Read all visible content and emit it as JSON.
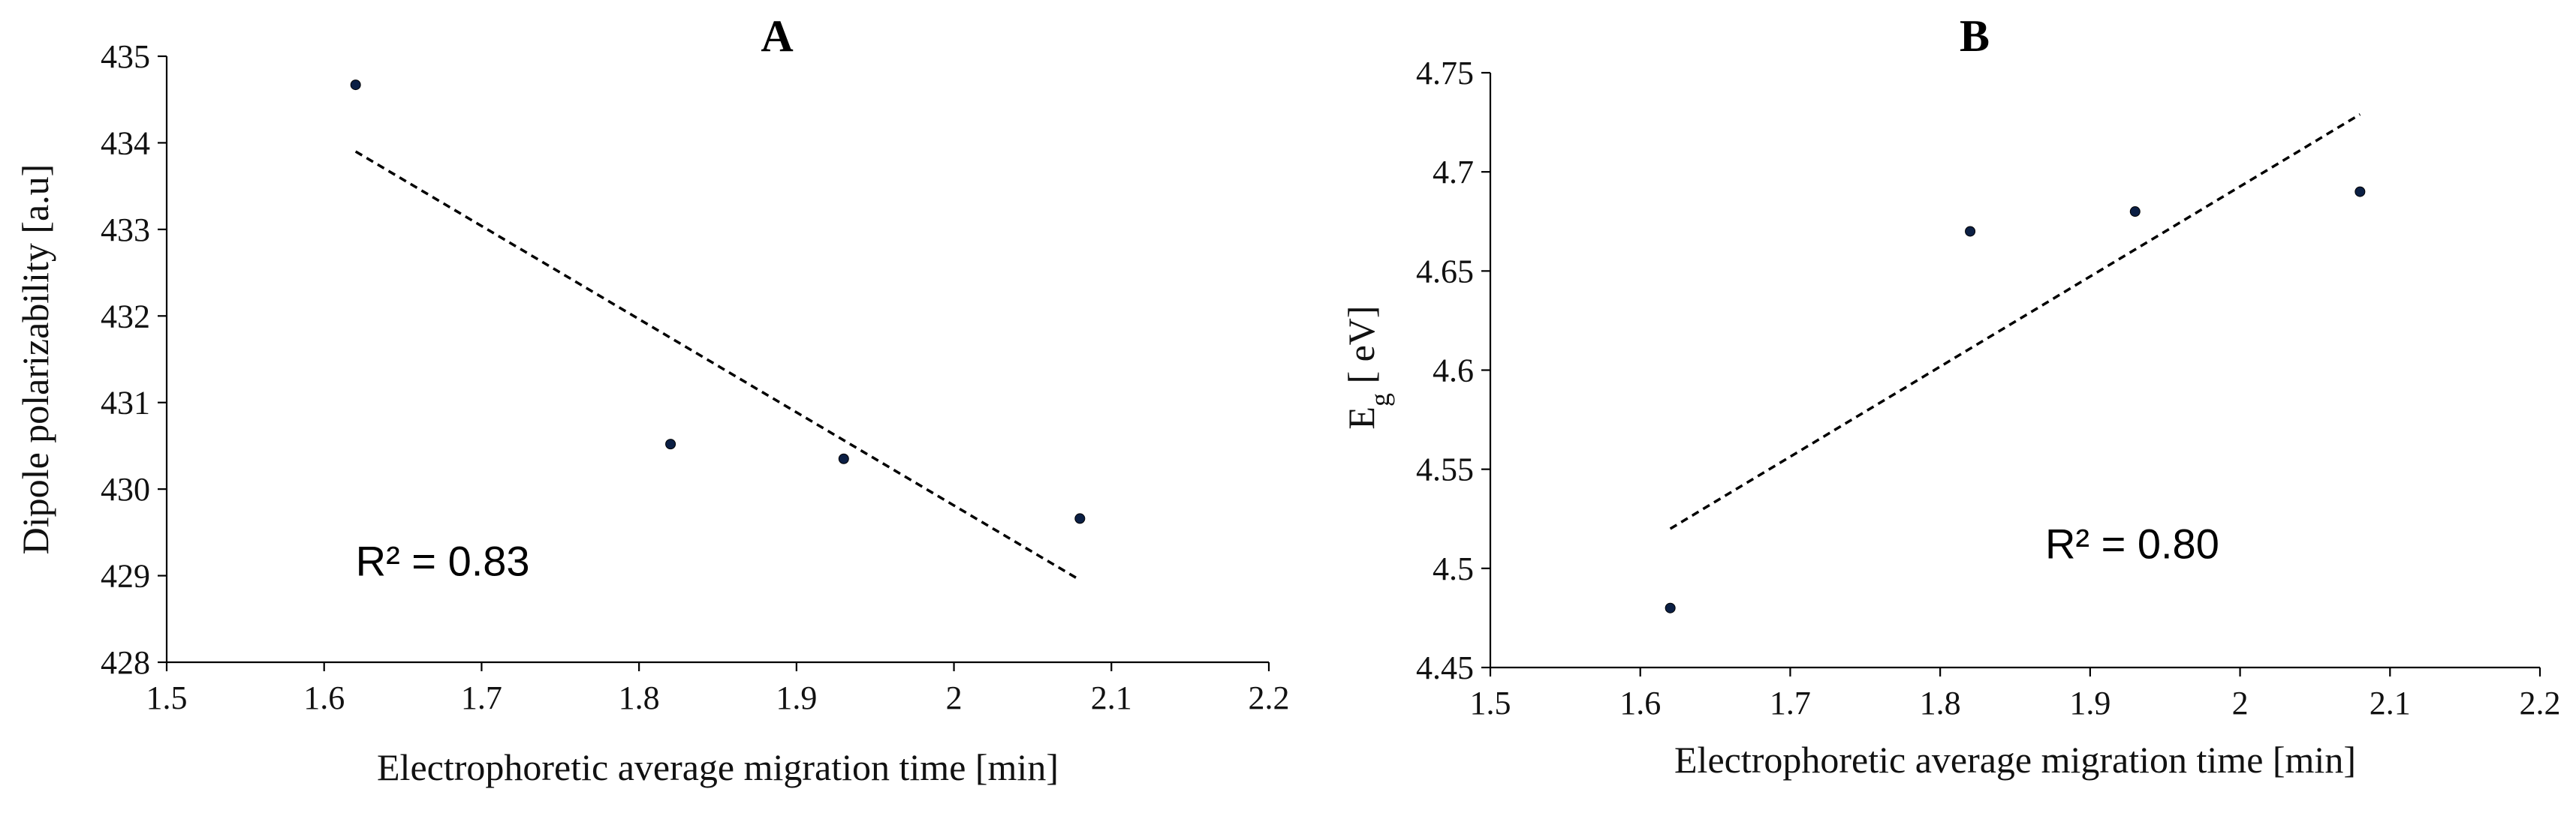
{
  "chart_data": [
    {
      "type": "scatter",
      "title": "A",
      "xlabel": "Electrophoretic average migration time [min]",
      "ylabel": "Dipole polarizability [a.u]",
      "xlim": [
        1.5,
        2.2
      ],
      "ylim": [
        428,
        435
      ],
      "x_ticks": [
        1.5,
        1.6,
        1.7,
        1.8,
        1.9,
        2.0,
        2.1,
        2.2
      ],
      "x_tick_labels": [
        "1.5",
        "1.6",
        "1.7",
        "1.8",
        "1.9",
        "2",
        "2.1",
        "2.2"
      ],
      "y_ticks": [
        428,
        429,
        430,
        431,
        432,
        433,
        434,
        435
      ],
      "y_tick_labels": [
        "428",
        "429",
        "430",
        "431",
        "432",
        "433",
        "434",
        "435"
      ],
      "points": [
        {
          "x": 1.62,
          "y": 434.67
        },
        {
          "x": 1.82,
          "y": 430.52
        },
        {
          "x": 1.93,
          "y": 430.35
        },
        {
          "x": 2.08,
          "y": 429.66
        }
      ],
      "trendline": {
        "style": "dashed",
        "from": {
          "x": 1.62,
          "y": 433.9
        },
        "to": {
          "x": 2.08,
          "y": 428.95
        }
      },
      "annotation": {
        "text": "R² = 0.83",
        "x": 1.62,
        "y": 429.0
      },
      "grid": false
    },
    {
      "type": "scatter",
      "title": "B",
      "xlabel": "Electrophoretic average migration time [min]",
      "ylabel_main": "E",
      "ylabel_sub": "g",
      "ylabel_rest": " [ eV]",
      "xlim": [
        1.5,
        2.2
      ],
      "ylim": [
        4.45,
        4.75
      ],
      "x_ticks": [
        1.5,
        1.6,
        1.7,
        1.8,
        1.9,
        2.0,
        2.1,
        2.2
      ],
      "x_tick_labels": [
        "1.5",
        "1.6",
        "1.7",
        "1.8",
        "1.9",
        "2",
        "2.1",
        "2.2"
      ],
      "y_ticks": [
        4.45,
        4.5,
        4.55,
        4.6,
        4.65,
        4.7,
        4.75
      ],
      "y_tick_labels": [
        "4.45",
        "4.5",
        "4.55",
        "4.6",
        "4.65",
        "4.7",
        "4.75"
      ],
      "points": [
        {
          "x": 1.62,
          "y": 4.48
        },
        {
          "x": 1.82,
          "y": 4.67
        },
        {
          "x": 1.93,
          "y": 4.68
        },
        {
          "x": 2.08,
          "y": 4.69
        }
      ],
      "trendline": {
        "style": "dashed",
        "from": {
          "x": 1.62,
          "y": 4.52
        },
        "to": {
          "x": 2.08,
          "y": 4.729
        }
      },
      "annotation": {
        "text": "R² = 0.80",
        "x": 1.87,
        "y": 4.505
      },
      "grid": false
    }
  ]
}
